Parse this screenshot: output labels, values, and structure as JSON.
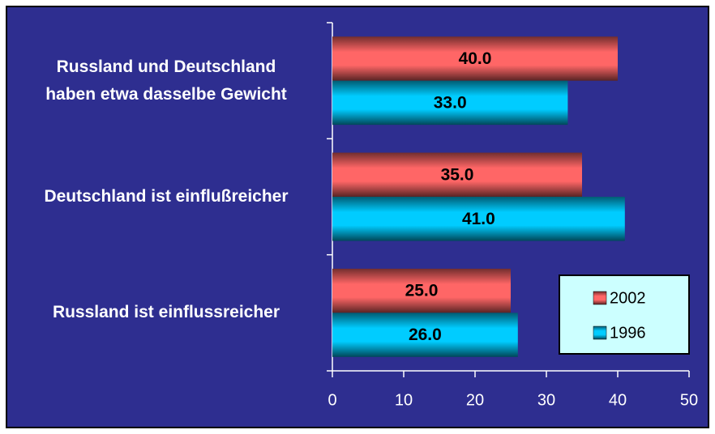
{
  "chart_data": {
    "type": "bar",
    "categories": [
      "Russland und Deutschland\nhaben etwa dasselbe Gewicht",
      "Deutschland ist einflußreicher",
      "Russland ist einflussreicher"
    ],
    "series": [
      {
        "name": "2002",
        "color": "#ff6666",
        "values": [
          40,
          35,
          25
        ],
        "value_labels": [
          "40.0",
          "35.0",
          "25.0"
        ]
      },
      {
        "name": "1996",
        "color": "#00ccff",
        "values": [
          33,
          41,
          26
        ],
        "value_labels": [
          "33.0",
          "41.0",
          "26.0"
        ]
      }
    ],
    "xlim": [
      0,
      50
    ],
    "xticks": [
      0,
      10,
      20,
      30,
      40,
      50
    ],
    "legend": "lower right"
  }
}
